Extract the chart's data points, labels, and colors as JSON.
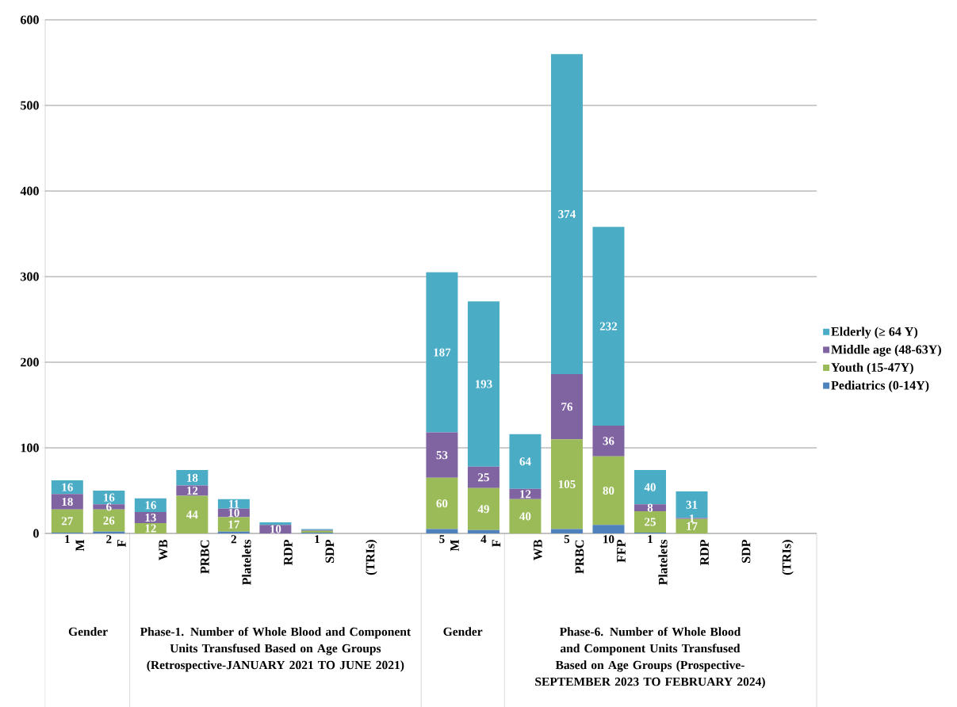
{
  "chart_data": {
    "type": "bar",
    "stacked": true,
    "categories": [
      "M",
      "F",
      "WB",
      "PRBC",
      "Platelets",
      "RDP",
      "SDP",
      "(TRIs)",
      null,
      "M",
      "F",
      "WB",
      "PRBC",
      "FFP",
      "Platelets",
      "RDP",
      "SDP",
      "(TRIs)"
    ],
    "series": [
      {
        "name": "Pediatrics (0-14Y)",
        "color": "#4f81bd",
        "values": [
          1,
          2,
          0,
          0,
          2,
          0,
          1,
          0,
          null,
          5,
          4,
          0,
          5,
          10,
          1,
          0,
          0,
          0
        ],
        "value_labels": [
          "1",
          "2",
          null,
          null,
          "2",
          null,
          "1",
          null,
          null,
          "5",
          "4",
          null,
          "5",
          "10",
          "1",
          null,
          null,
          null
        ]
      },
      {
        "name": "Youth (15-47Y)",
        "color": "#9bbb59",
        "values": [
          27,
          26,
          12,
          44,
          17,
          0,
          2,
          0,
          null,
          60,
          49,
          40,
          105,
          80,
          25,
          17,
          0,
          0
        ],
        "value_labels": [
          "27",
          "26",
          "12",
          "44",
          "17",
          null,
          null,
          null,
          null,
          "60",
          "49",
          "40",
          "105",
          "80",
          "25",
          "17",
          null,
          null
        ]
      },
      {
        "name": "Middle age (48-63Y)",
        "color": "#8064a2",
        "values": [
          18,
          6,
          13,
          12,
          10,
          10,
          1,
          0,
          null,
          53,
          25,
          12,
          76,
          36,
          8,
          1,
          0,
          0
        ],
        "value_labels": [
          "18",
          "6",
          "13",
          "12",
          "10",
          "10",
          null,
          null,
          null,
          "53",
          "25",
          "12",
          "76",
          "36",
          "8",
          "1",
          null,
          null
        ]
      },
      {
        "name": "Elderly (≥ 64 Y)",
        "color": "#4bacc6",
        "values": [
          16,
          16,
          16,
          18,
          11,
          3,
          1,
          0,
          null,
          187,
          193,
          64,
          374,
          232,
          40,
          31,
          0,
          0
        ],
        "value_labels": [
          "16",
          "16",
          "16",
          "18",
          "11",
          null,
          null,
          null,
          null,
          "187",
          "193",
          "64",
          "374",
          "232",
          "40",
          "31",
          null,
          null
        ]
      }
    ],
    "ylim": [
      0,
      600
    ],
    "yticks": [
      0,
      100,
      200,
      300,
      400,
      500,
      600
    ],
    "grid": "y",
    "legend": "right",
    "annotations": [
      "Gender",
      "Phase-1. Number of Whole Blood and Component Units Transfused Based on Age Groups (Retrospective-JANUARY 2021 TO JUNE 2021)",
      "Gender",
      "Phase-6. Number of Whole Blood and Component Units Transfused Based on Age Groups  (Prospective-SEPTEMBER 2023 TO FEBRUARY 2024)"
    ]
  }
}
